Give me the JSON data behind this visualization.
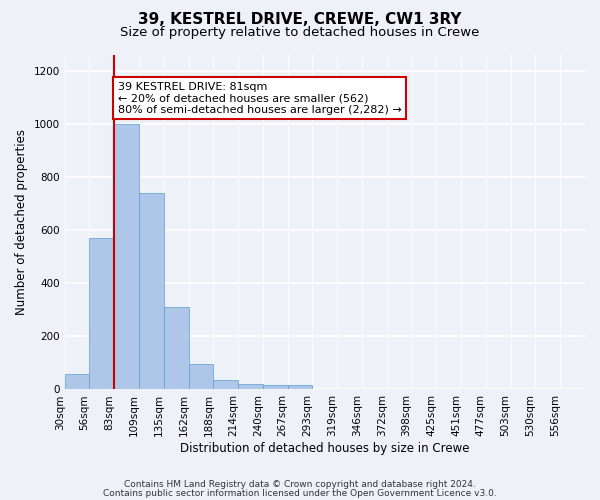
{
  "title": "39, KESTREL DRIVE, CREWE, CW1 3RY",
  "subtitle": "Size of property relative to detached houses in Crewe",
  "xlabel": "Distribution of detached houses by size in Crewe",
  "ylabel": "Number of detached properties",
  "bar_values": [
    60,
    570,
    1000,
    740,
    310,
    95,
    35,
    22,
    15,
    15,
    0,
    0,
    0,
    0,
    0,
    0,
    0,
    0,
    0,
    0,
    0
  ],
  "bar_labels": [
    "30sqm",
    "56sqm",
    "83sqm",
    "109sqm",
    "135sqm",
    "162sqm",
    "188sqm",
    "214sqm",
    "240sqm",
    "267sqm",
    "293sqm",
    "319sqm",
    "346sqm",
    "372sqm",
    "398sqm",
    "425sqm",
    "451sqm",
    "477sqm",
    "503sqm",
    "530sqm",
    "556sqm"
  ],
  "bar_color": "#aec6e8",
  "bar_edge_color": "#5a9fd4",
  "vline_x_index": 2,
  "vline_color": "#cc0000",
  "annotation_text": "39 KESTREL DRIVE: 81sqm\n← 20% of detached houses are smaller (562)\n80% of semi-detached houses are larger (2,282) →",
  "annotation_box_color": "#ffffff",
  "annotation_border_color": "#cc0000",
  "ylim": [
    0,
    1260
  ],
  "yticks": [
    0,
    200,
    400,
    600,
    800,
    1000,
    1200
  ],
  "footer_line1": "Contains HM Land Registry data © Crown copyright and database right 2024.",
  "footer_line2": "Contains public sector information licensed under the Open Government Licence v3.0.",
  "background_color": "#eef2f8",
  "grid_color": "#ffffff",
  "title_fontsize": 11,
  "subtitle_fontsize": 9.5,
  "axis_label_fontsize": 8.5,
  "tick_fontsize": 7.5,
  "annotation_fontsize": 8,
  "footer_fontsize": 6.5
}
